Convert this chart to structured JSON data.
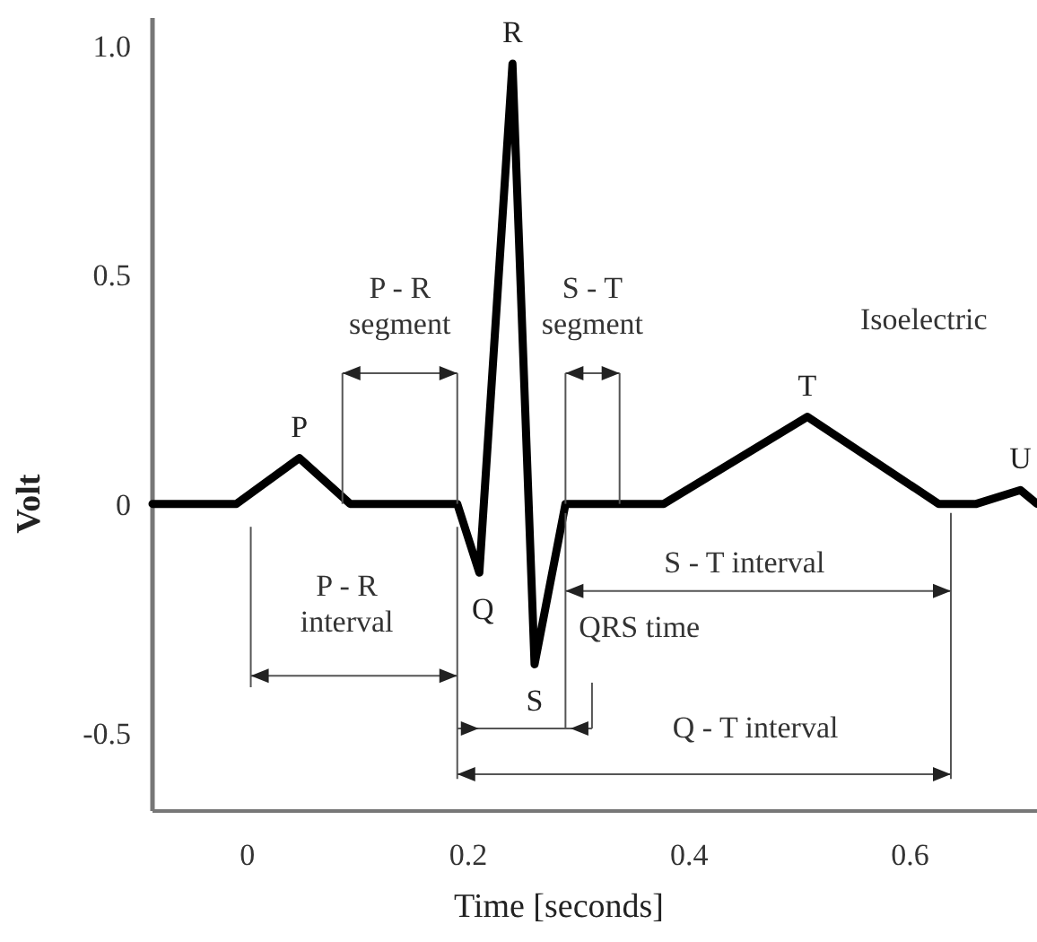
{
  "chart_data": {
    "type": "line",
    "xlabel": "Time [seconds]",
    "ylabel": "Volt",
    "x": [
      -0.086,
      -0.01,
      0.047,
      0.093,
      0.19,
      0.21,
      0.24,
      0.26,
      0.288,
      0.377,
      0.507,
      0.626,
      0.66,
      0.7,
      0.715
    ],
    "series": [
      {
        "color": "#000000",
        "values": [
          0,
          0,
          0.1,
          0,
          0,
          -0.15,
          0.96,
          -0.35,
          0,
          0,
          0.19,
          0,
          0,
          0.03,
          0
        ]
      }
    ],
    "xlim": [
      -0.086,
      0.715
    ],
    "ylim": [
      -0.67,
      1.06
    ],
    "xticks": [
      0,
      0.2,
      0.4,
      0.6
    ],
    "yticks": [
      {
        "value": -0.5,
        "label": "-0.5"
      },
      0,
      0.5,
      {
        "value": 1,
        "label": "1.0"
      }
    ],
    "grid": false,
    "marker": "none",
    "line_style": "solid",
    "annotations": [
      {
        "text": "P",
        "x": 0.047,
        "y": 0.1
      },
      {
        "text": "Q",
        "x": 0.21,
        "y": -0.15
      },
      {
        "text": "R",
        "x": 0.24,
        "y": 0.96
      },
      {
        "text": "S",
        "x": 0.26,
        "y": -0.35
      },
      {
        "text": "T",
        "x": 0.507,
        "y": 0.19
      },
      {
        "text": "U",
        "x": 0.7,
        "y": 0.03
      },
      {
        "text": "P - R segment",
        "x": 0.19,
        "y": 0
      },
      {
        "text": "S - T segment",
        "x": 0.288,
        "y": 0
      },
      "Isoelectric",
      "P - R interval",
      "QRS time",
      "S - T interval",
      "Q - T interval"
    ]
  }
}
